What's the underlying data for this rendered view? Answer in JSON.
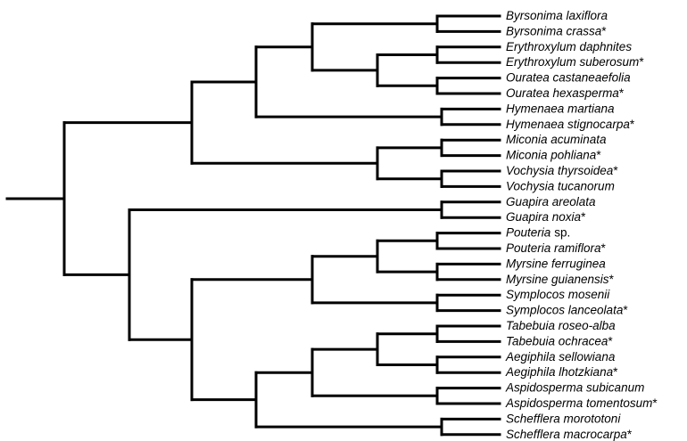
{
  "leaves": [
    {
      "name": "Byrsonima laxiflora"
    },
    {
      "name": "Byrsonima crassa",
      "suffix": "*"
    },
    {
      "name": "Erythroxylum daphnites"
    },
    {
      "name": "Erythroxylum suberosum",
      "suffix": "*"
    },
    {
      "name": "Ouratea castaneaefolia"
    },
    {
      "name": "Ouratea hexasperma",
      "suffix": "*"
    },
    {
      "name": "Hymenaea martiana"
    },
    {
      "name": "Hymenaea stignocarpa",
      "suffix": "*"
    },
    {
      "name": "Miconia acuminata"
    },
    {
      "name": "Miconia pohliana",
      "suffix": "*"
    },
    {
      "name": "Vochysia thyrsoidea",
      "suffix": "*"
    },
    {
      "name": "Vochysia tucanorum"
    },
    {
      "name": "Guapira areolata"
    },
    {
      "name": "Guapira noxia",
      "suffix": "*"
    },
    {
      "name": "Pouteria",
      "suffix": "sp."
    },
    {
      "name": "Pouteria ramiflora",
      "suffix": "*"
    },
    {
      "name": "Myrsine ferruginea"
    },
    {
      "name": "Myrsine guianensis",
      "suffix": "*"
    },
    {
      "name": "Symplocos mosenii"
    },
    {
      "name": "Symplocos lanceolata",
      "suffix": "*"
    },
    {
      "name": "Tabebuia roseo-alba"
    },
    {
      "name": "Tabebuia ochracea",
      "suffix": "*"
    },
    {
      "name": "Aegiphila sellowiana"
    },
    {
      "name": "Aegiphila lhotzkiana",
      "suffix": "*"
    },
    {
      "name": "Aspidosperma subicanum"
    },
    {
      "name": "Aspidosperma tomentosum",
      "suffix": "*"
    },
    {
      "name": "Schefflera morototoni"
    },
    {
      "name": "Schefflera macrocarpa",
      "suffix": "*"
    }
  ]
}
